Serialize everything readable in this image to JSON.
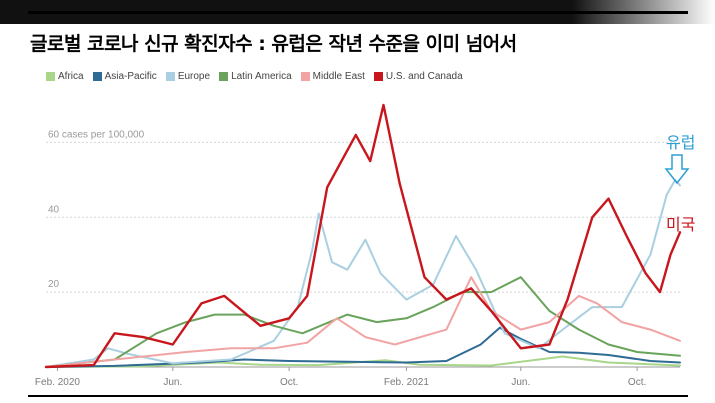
{
  "header": {
    "title": "글로벌 코로나 신규 확진자수 : 유럽은 작년 수준을 이미 넘어서"
  },
  "colors": {
    "Africa": "#a8d68a",
    "Asia-Pacific": "#2f6b94",
    "Europe": "#a9cfe0",
    "Latin America": "#6aa35c",
    "Middle East": "#f2a3a3",
    "U.S. and Canada": "#c8161d"
  },
  "annotations": {
    "europe": "유럽",
    "us": "미국",
    "arrow_icon": "down-arrow-icon"
  },
  "chart_data": {
    "type": "line",
    "unit_label": "60 cases per 100,000",
    "y_ticks": [
      20,
      40,
      60
    ],
    "y_tick_labels": [
      "20",
      "40",
      "60 cases per 100,000"
    ],
    "ylim": [
      0,
      70
    ],
    "grid": true,
    "legend_position": "top-left",
    "x_ticks": [
      {
        "date": "2020-02-01",
        "label": "Feb. 2020"
      },
      {
        "date": "2020-06-01",
        "label": "Jun."
      },
      {
        "date": "2020-10-01",
        "label": "Oct."
      },
      {
        "date": "2021-02-01",
        "label": "Feb. 2021"
      },
      {
        "date": "2021-06-01",
        "label": "Jun."
      },
      {
        "date": "2021-10-01",
        "label": "Oct."
      }
    ],
    "x_range": [
      "2020-01-20",
      "2021-11-15"
    ],
    "series": [
      {
        "name": "Africa",
        "points": [
          [
            "2020-01-20",
            0
          ],
          [
            "2020-05-01",
            0.2
          ],
          [
            "2020-07-20",
            1.2
          ],
          [
            "2020-09-01",
            0.6
          ],
          [
            "2020-11-01",
            0.5
          ],
          [
            "2021-01-10",
            1.8
          ],
          [
            "2021-02-15",
            0.6
          ],
          [
            "2021-05-01",
            0.4
          ],
          [
            "2021-07-15",
            2.8
          ],
          [
            "2021-09-01",
            1.2
          ],
          [
            "2021-11-15",
            0.4
          ]
        ]
      },
      {
        "name": "Asia-Pacific",
        "points": [
          [
            "2020-01-20",
            0
          ],
          [
            "2020-04-01",
            0.3
          ],
          [
            "2020-07-01",
            1.2
          ],
          [
            "2020-08-15",
            2.0
          ],
          [
            "2020-10-01",
            1.6
          ],
          [
            "2020-12-01",
            1.4
          ],
          [
            "2021-02-01",
            1.2
          ],
          [
            "2021-03-15",
            1.6
          ],
          [
            "2021-04-20",
            6
          ],
          [
            "2021-05-10",
            10.5
          ],
          [
            "2021-06-01",
            7.5
          ],
          [
            "2021-07-01",
            4
          ],
          [
            "2021-08-01",
            3.8
          ],
          [
            "2021-09-01",
            3.2
          ],
          [
            "2021-10-15",
            1.6
          ],
          [
            "2021-11-15",
            1.2
          ]
        ]
      },
      {
        "name": "Europe",
        "points": [
          [
            "2020-01-20",
            0
          ],
          [
            "2020-03-10",
            2
          ],
          [
            "2020-03-25",
            5
          ],
          [
            "2020-04-15",
            3.5
          ],
          [
            "2020-06-01",
            1
          ],
          [
            "2020-08-01",
            2
          ],
          [
            "2020-09-15",
            7
          ],
          [
            "2020-10-10",
            16
          ],
          [
            "2020-10-25",
            31
          ],
          [
            "2020-11-01",
            41
          ],
          [
            "2020-11-15",
            28
          ],
          [
            "2020-12-01",
            26
          ],
          [
            "2020-12-20",
            34
          ],
          [
            "2021-01-05",
            25
          ],
          [
            "2021-02-01",
            18
          ],
          [
            "2021-03-01",
            22
          ],
          [
            "2021-03-25",
            35
          ],
          [
            "2021-04-15",
            26
          ],
          [
            "2021-05-15",
            9
          ],
          [
            "2021-06-20",
            5
          ],
          [
            "2021-07-15",
            10
          ],
          [
            "2021-08-15",
            16
          ],
          [
            "2021-09-15",
            16
          ],
          [
            "2021-10-15",
            30
          ],
          [
            "2021-11-01",
            46
          ],
          [
            "2021-11-10",
            50
          ],
          [
            "2021-11-15",
            48.5
          ]
        ]
      },
      {
        "name": "Latin America",
        "points": [
          [
            "2020-01-20",
            0
          ],
          [
            "2020-04-01",
            2
          ],
          [
            "2020-05-15",
            9
          ],
          [
            "2020-06-15",
            12
          ],
          [
            "2020-07-15",
            14
          ],
          [
            "2020-08-15",
            14
          ],
          [
            "2020-09-15",
            11
          ],
          [
            "2020-10-15",
            9
          ],
          [
            "2020-12-01",
            14
          ],
          [
            "2021-01-01",
            12
          ],
          [
            "2021-02-01",
            13
          ],
          [
            "2021-03-01",
            16
          ],
          [
            "2021-04-01",
            20
          ],
          [
            "2021-05-01",
            20
          ],
          [
            "2021-06-01",
            24
          ],
          [
            "2021-07-01",
            15
          ],
          [
            "2021-08-01",
            10
          ],
          [
            "2021-09-01",
            6
          ],
          [
            "2021-10-01",
            4
          ],
          [
            "2021-11-15",
            3
          ]
        ]
      },
      {
        "name": "Middle East",
        "points": [
          [
            "2020-01-20",
            0
          ],
          [
            "2020-04-01",
            2
          ],
          [
            "2020-06-15",
            4
          ],
          [
            "2020-08-01",
            5
          ],
          [
            "2020-09-15",
            5
          ],
          [
            "2020-10-20",
            6.5
          ],
          [
            "2020-11-20",
            13
          ],
          [
            "2020-12-20",
            8
          ],
          [
            "2021-01-20",
            6
          ],
          [
            "2021-03-15",
            10
          ],
          [
            "2021-04-10",
            24
          ],
          [
            "2021-05-01",
            15
          ],
          [
            "2021-06-01",
            10
          ],
          [
            "2021-07-01",
            12
          ],
          [
            "2021-08-01",
            19
          ],
          [
            "2021-08-20",
            17
          ],
          [
            "2021-09-15",
            12
          ],
          [
            "2021-10-15",
            10
          ],
          [
            "2021-11-15",
            7
          ]
        ]
      },
      {
        "name": "U.S. and Canada",
        "points": [
          [
            "2020-01-20",
            0
          ],
          [
            "2020-03-10",
            0.5
          ],
          [
            "2020-04-01",
            9
          ],
          [
            "2020-05-01",
            8
          ],
          [
            "2020-06-01",
            6
          ],
          [
            "2020-07-01",
            17
          ],
          [
            "2020-07-25",
            19
          ],
          [
            "2020-09-01",
            11
          ],
          [
            "2020-10-01",
            13
          ],
          [
            "2020-10-20",
            19
          ],
          [
            "2020-11-10",
            48
          ],
          [
            "2020-11-25",
            55
          ],
          [
            "2020-12-10",
            62
          ],
          [
            "2020-12-25",
            55
          ],
          [
            "2021-01-08",
            70
          ],
          [
            "2021-01-25",
            49
          ],
          [
            "2021-02-20",
            24
          ],
          [
            "2021-03-15",
            18
          ],
          [
            "2021-04-10",
            21
          ],
          [
            "2021-05-01",
            15
          ],
          [
            "2021-06-01",
            5
          ],
          [
            "2021-07-01",
            6
          ],
          [
            "2021-07-20",
            18
          ],
          [
            "2021-08-15",
            40
          ],
          [
            "2021-09-01",
            45
          ],
          [
            "2021-09-20",
            35
          ],
          [
            "2021-10-10",
            25
          ],
          [
            "2021-10-25",
            20
          ],
          [
            "2021-11-05",
            30
          ],
          [
            "2021-11-15",
            36
          ]
        ]
      }
    ]
  }
}
